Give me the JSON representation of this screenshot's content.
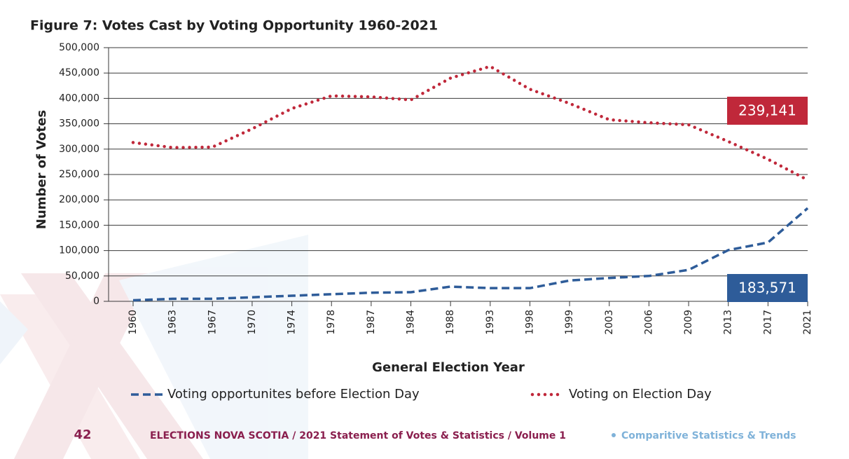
{
  "chart_data": {
    "type": "line",
    "title": "Figure 7: Votes Cast by Voting Opportunity 1960-2021",
    "x_label": "General Election Year",
    "y_label": "Number of Votes",
    "categories": [
      "1960",
      "1963",
      "1967",
      "1970",
      "1974",
      "1978",
      "1987",
      "1984",
      "1988",
      "1993",
      "1998",
      "1999",
      "2003",
      "2006",
      "2009",
      "2013",
      "2017",
      "2021"
    ],
    "series": [
      {
        "name": "Voting opportunites before Election Day",
        "color": "#2e5c99",
        "style": "dashed",
        "values": [
          2000,
          5000,
          5000,
          8000,
          11000,
          14000,
          17000,
          18000,
          29000,
          26000,
          26000,
          41000,
          46000,
          50000,
          62000,
          101000,
          116000,
          183571
        ],
        "value_labels": [
          null,
          null,
          null,
          null,
          null,
          null,
          null,
          null,
          null,
          null,
          null,
          null,
          null,
          null,
          null,
          null,
          null,
          "183,571"
        ]
      },
      {
        "name": "Voting on Election Day",
        "color": "#c0283a",
        "style": "dotted",
        "values": [
          313000,
          303000,
          304000,
          340000,
          380000,
          405000,
          403000,
          397000,
          440000,
          463000,
          418000,
          390000,
          358000,
          352000,
          348000,
          315000,
          280000,
          239141
        ],
        "value_labels": [
          null,
          null,
          null,
          null,
          null,
          null,
          null,
          null,
          null,
          null,
          null,
          null,
          null,
          null,
          null,
          null,
          null,
          "239,141"
        ]
      }
    ],
    "ylim": [
      0,
      500000
    ],
    "yticks": [
      0,
      {
        "value": 50000,
        "label": "50,000"
      },
      {
        "value": 100000,
        "label": "100,000"
      },
      {
        "value": 150000,
        "label": "150,000"
      },
      {
        "value": 200000,
        "label": "200,000"
      },
      {
        "value": 250000,
        "label": "250,000"
      },
      {
        "value": 300000,
        "label": "300,000"
      },
      {
        "value": 350000,
        "label": "350,000"
      },
      {
        "value": 400000,
        "label": "400,000"
      },
      {
        "value": 450000,
        "label": "450,000"
      },
      {
        "value": 500000,
        "label": "500,000"
      }
    ],
    "grid": true
  },
  "footer": {
    "page_number": "42",
    "publication": "ELECTIONS NOVA SCOTIA / 2021 Statement of Votes & Statistics / Volume 1",
    "section": "Comparitive Statistics & Trends"
  }
}
